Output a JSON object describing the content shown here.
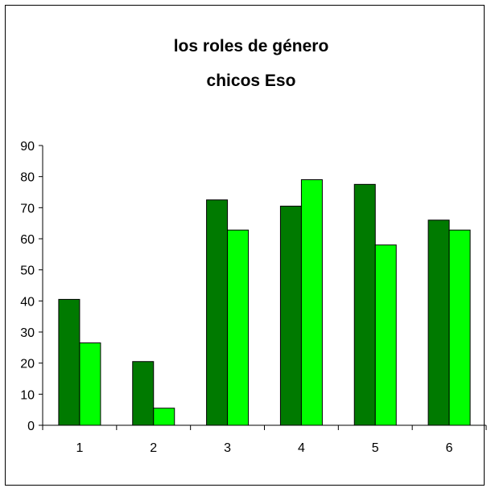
{
  "chart_data": {
    "type": "bar",
    "title_lines": [
      "los roles de género",
      "chicos Eso"
    ],
    "categories": [
      "1",
      "2",
      "3",
      "4",
      "5",
      "6"
    ],
    "series": [
      {
        "color": "#007a00",
        "values": [
          40.5,
          20.5,
          72.5,
          70.5,
          77.5,
          66
        ]
      },
      {
        "color": "#00ff00",
        "values": [
          26.5,
          5.5,
          62.8,
          79,
          58,
          62.8
        ]
      }
    ],
    "ylim": [
      0,
      90
    ],
    "yticks": [
      0,
      10,
      20,
      30,
      40,
      50,
      60,
      70,
      80,
      90
    ],
    "grid": false,
    "legend": "none"
  }
}
